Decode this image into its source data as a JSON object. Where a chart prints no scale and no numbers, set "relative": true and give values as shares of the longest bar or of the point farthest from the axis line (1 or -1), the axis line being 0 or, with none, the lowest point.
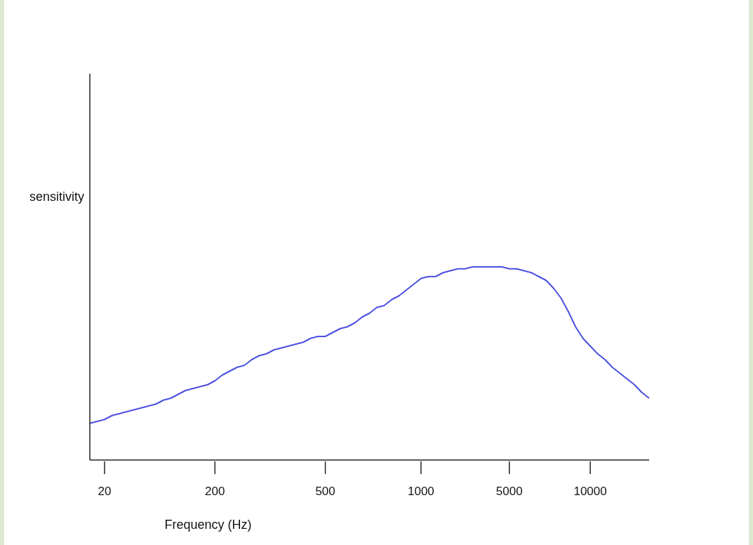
{
  "chart_data": {
    "type": "line",
    "relative": true,
    "xlabel": "Frequency   (Hz)",
    "ylabel": "sensitivity",
    "categories": [
      null,
      null,
      "20",
      null,
      null,
      null,
      null,
      null,
      null,
      null,
      null,
      null,
      null,
      null,
      null,
      null,
      null,
      "200",
      null,
      null,
      null,
      null,
      null,
      null,
      null,
      null,
      null,
      null,
      null,
      null,
      null,
      null,
      "500",
      null,
      null,
      null,
      null,
      null,
      null,
      null,
      null,
      null,
      null,
      null,
      null,
      "1000",
      null,
      null,
      null,
      null,
      null,
      null,
      null,
      null,
      null,
      null,
      null,
      "5000",
      null,
      null,
      null,
      null,
      null,
      null,
      null,
      null,
      null,
      null,
      "10000",
      null,
      null,
      null,
      null,
      null,
      null,
      null,
      null
    ],
    "series": [
      {
        "color": "#4b50e0",
        "values": [
          0.19,
          0.2,
          0.21,
          0.23,
          0.24,
          0.25,
          0.26,
          0.27,
          0.28,
          0.29,
          0.31,
          0.32,
          0.34,
          0.36,
          0.37,
          0.38,
          0.39,
          0.41,
          0.44,
          0.46,
          0.48,
          0.49,
          0.52,
          0.54,
          0.55,
          0.57,
          0.58,
          0.59,
          0.6,
          0.61,
          0.63,
          0.64,
          0.64,
          0.66,
          0.68,
          0.69,
          0.71,
          0.74,
          0.76,
          0.79,
          0.8,
          0.83,
          0.85,
          0.88,
          0.91,
          0.94,
          0.95,
          0.95,
          0.97,
          0.98,
          0.99,
          0.99,
          1.0,
          1,
          1,
          1,
          1,
          0.99,
          0.99,
          0.98,
          0.97,
          0.95,
          0.93,
          0.89,
          0.84,
          0.77,
          0.69,
          0.63,
          0.59,
          0.55,
          0.52,
          0.48,
          0.45,
          0.42,
          0.39,
          0.35,
          0.32
        ]
      }
    ],
    "grid": false,
    "legend": false,
    "marker": "none",
    "line_style": "solid"
  }
}
